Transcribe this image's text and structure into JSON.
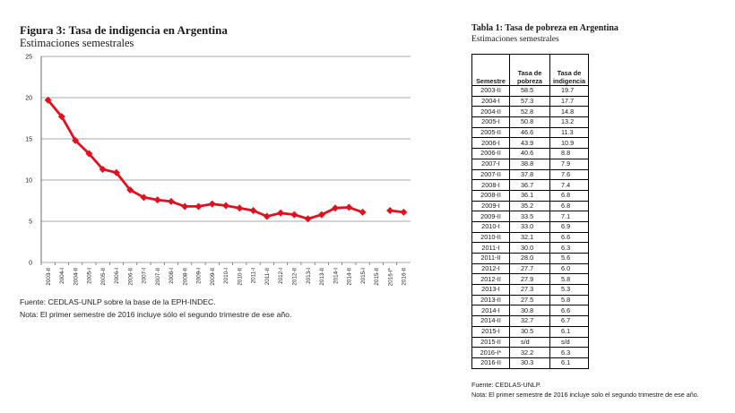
{
  "figure": {
    "title": "Figura 3: Tasa de indigencia en Argentina",
    "subtitle": "Estimaciones semestrales",
    "source": "Fuente: CEDLAS-UNLP sobre la base de la EPH-INDEC.",
    "note": "Nota: El primer semestre de 2016 incluye sólo el segundo trimestre de ese año."
  },
  "chart_data": {
    "type": "line",
    "title": "Figura 3: Tasa de indigencia en Argentina",
    "subtitle": "Estimaciones semestrales",
    "xlabel": "",
    "ylabel": "",
    "ylim": [
      0,
      25
    ],
    "yticks": [
      "0",
      "5",
      "10",
      "15",
      "20",
      "25"
    ],
    "grid": true,
    "color": "#e0101e",
    "categories": [
      "2003-II",
      "2004-I",
      "2004-II",
      "2005-I",
      "2005-II",
      "2006-I",
      "2006-II",
      "2007-I",
      "2007-II",
      "2008-I",
      "2008-II",
      "2009-I",
      "2009-II",
      "2010-I",
      "2010-II",
      "2011-I",
      "2011-II",
      "2012-I",
      "2012-II",
      "2013-I",
      "2013-II",
      "2014-I",
      "2014-II",
      "2015-I",
      "2015-II",
      "2016-I*",
      "2016-II"
    ],
    "values": [
      19.7,
      17.7,
      14.8,
      13.2,
      11.3,
      10.9,
      8.8,
      7.9,
      7.6,
      7.4,
      6.8,
      6.8,
      7.1,
      6.9,
      6.6,
      6.3,
      5.6,
      6.0,
      5.8,
      5.3,
      5.8,
      6.6,
      6.7,
      6.1,
      null,
      6.3,
      6.1
    ]
  },
  "table": {
    "title": "Tabla 1: Tasa de pobreza en Argentina",
    "subtitle": "Estimaciones semestrales",
    "headers": [
      "Semestre",
      "Tasa de pobreza",
      "Tasa de indigencia"
    ],
    "rows": [
      [
        "2003-II",
        "58.5",
        "19.7"
      ],
      [
        "2004-I",
        "57.3",
        "17.7"
      ],
      [
        "2004-II",
        "52.8",
        "14.8"
      ],
      [
        "2005-I",
        "50.8",
        "13.2"
      ],
      [
        "2005-II",
        "46.6",
        "11.3"
      ],
      [
        "2006-I",
        "43.9",
        "10.9"
      ],
      [
        "2006-II",
        "40.6",
        "8.8"
      ],
      [
        "2007-I",
        "38.8",
        "7.9"
      ],
      [
        "2007-II",
        "37.8",
        "7.6"
      ],
      [
        "2008-I",
        "36.7",
        "7.4"
      ],
      [
        "2008-II",
        "36.1",
        "6.8"
      ],
      [
        "2009-I",
        "35.2",
        "6.8"
      ],
      [
        "2009-II",
        "33.5",
        "7.1"
      ],
      [
        "2010-I",
        "33.0",
        "6.9"
      ],
      [
        "2010-II",
        "32.1",
        "6.6"
      ],
      [
        "2011-I",
        "30.0",
        "6.3"
      ],
      [
        "2011-II",
        "28.0",
        "5.6"
      ],
      [
        "2012-I",
        "27.7",
        "6.0"
      ],
      [
        "2012-II",
        "27.9",
        "5.8"
      ],
      [
        "2013-I",
        "27.3",
        "5.3"
      ],
      [
        "2013-II",
        "27.5",
        "5.8"
      ],
      [
        "2014-I",
        "30.8",
        "6.6"
      ],
      [
        "2014-II",
        "32.7",
        "6.7"
      ],
      [
        "2015-I",
        "30.5",
        "6.1"
      ],
      [
        "2015-II",
        "s/d",
        "s/d"
      ],
      [
        "2016-I*",
        "32.2",
        "6.3"
      ],
      [
        "2016-II",
        "30.3",
        "6.1"
      ]
    ],
    "source": "Fuente: CEDLAS-UNLP.",
    "note": "Nota: El primer semestre de 2016 incluye solo el segundo trimestre de ese año."
  }
}
